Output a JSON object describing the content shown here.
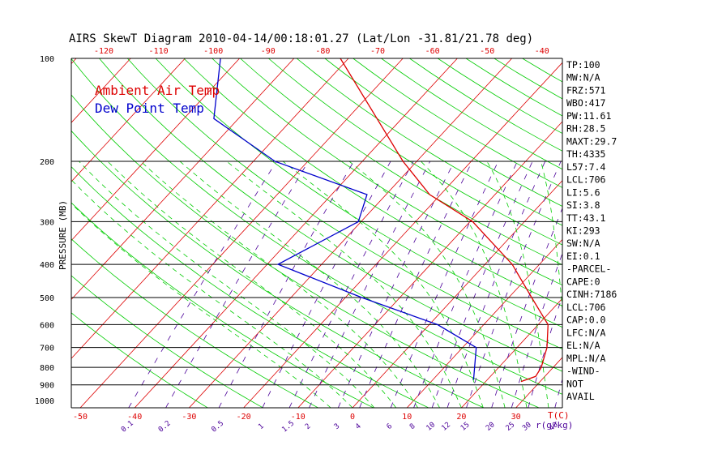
{
  "chart_data": {
    "type": "line",
    "title": "AIRS SkewT Diagram 2010-04-14/00:18:01.27 (Lat/Lon -31.81/21.78 deg)",
    "ylabel": "PRESSURE (MB)",
    "y_scale": "log",
    "ylim": [
      1050,
      100
    ],
    "xlim": [
      -50,
      40
    ],
    "x_unit_label": "T(C)",
    "mixing_ratio_unit_label": "r(g/kg)",
    "y_ticks": [
      100,
      200,
      300,
      400,
      500,
      600,
      700,
      800,
      900,
      1000
    ],
    "x_ticks_bottom": [
      -50,
      -40,
      -30,
      -20,
      -10,
      0,
      10,
      20,
      30
    ],
    "x_ticks_top": [
      -120,
      -110,
      -100,
      -90,
      -80,
      -70,
      -60,
      -50,
      -40
    ],
    "mixing_ratio_labels": [
      "0.1",
      "0.2",
      "0.5",
      "1",
      "1.5",
      "2",
      "3",
      "4",
      "6",
      "8",
      "10",
      "12",
      "15",
      "20",
      "25",
      "30",
      "40"
    ],
    "mixing_ratio_values": [
      0.1,
      0.2,
      0.5,
      1,
      1.5,
      2,
      3,
      4,
      6,
      8,
      10,
      12,
      15,
      20,
      25,
      30,
      40
    ],
    "isobar_lines_at": [
      200,
      300,
      400,
      500,
      600,
      700,
      800,
      900
    ],
    "series": [
      {
        "name": "Ambient Air Temp",
        "color": "#dd0000",
        "points": [
          {
            "p": 880,
            "t": 26.5
          },
          {
            "p": 850,
            "t": 28.3
          },
          {
            "p": 800,
            "t": 27.8
          },
          {
            "p": 700,
            "t": 25.5
          },
          {
            "p": 600,
            "t": 21.8
          },
          {
            "p": 500,
            "t": 14.2
          },
          {
            "p": 400,
            "t": 5.0
          },
          {
            "p": 300,
            "t": -9.5
          },
          {
            "p": 250,
            "t": -22.0
          },
          {
            "p": 200,
            "t": -32.5
          },
          {
            "p": 100,
            "t": -61.5
          }
        ]
      },
      {
        "name": "Dew Point Temp",
        "color": "#0000cc",
        "points": [
          {
            "p": 870,
            "t": 17.5
          },
          {
            "p": 700,
            "t": 12.5
          },
          {
            "p": 600,
            "t": 1.5
          },
          {
            "p": 500,
            "t": -17.0
          },
          {
            "p": 400,
            "t": -38.0
          },
          {
            "p": 300,
            "t": -30.5
          },
          {
            "p": 250,
            "t": -33.5
          },
          {
            "p": 200,
            "t": -56.0
          },
          {
            "p": 150,
            "t": -74.5
          },
          {
            "p": 100,
            "t": -83.5
          }
        ]
      }
    ],
    "legend": [
      "Ambient Air Temp",
      "Dew Point Temp"
    ],
    "legend_position": "top-left",
    "indices": [
      "TP:100",
      "MW:N/A",
      "FRZ:571",
      "WBO:417",
      "PW:11.61",
      "RH:28.5",
      "MAXT:29.7",
      "TH:4335",
      "L57:7.4",
      "LCL:706",
      "LI:5.6",
      "SI:3.8",
      "TT:43.1",
      "KI:293",
      "SW:N/A",
      "EI:0.1",
      "-PARCEL-",
      "CAPE:0",
      "CINH:7186",
      "LCL:706",
      "CAP:0.0",
      "LFC:N/A",
      "EL:N/A",
      "MPL:N/A",
      "-WIND-",
      "NOT",
      "AVAIL"
    ],
    "colors": {
      "isotherm": "#dd0000",
      "dry_adiabat": "#00cc00",
      "moist_adiabat": "#00cc00",
      "mixing_ratio": "#4b0099",
      "frame": "#000000"
    }
  }
}
